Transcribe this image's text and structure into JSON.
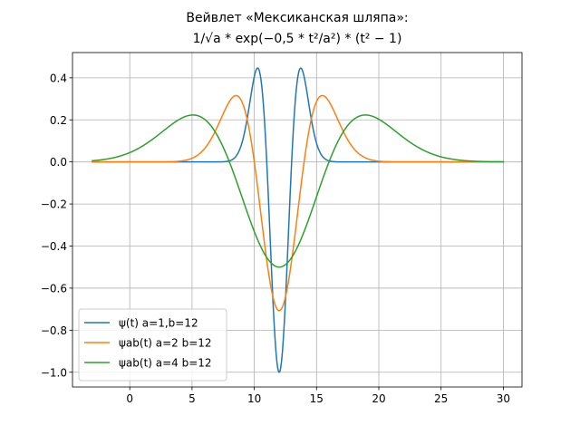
{
  "chart_data": {
    "type": "line",
    "title_line1": "Вейвлет «Мексиканская шляпа»:",
    "title_line2": "1/√a * exp(−0,5 * t²/a²) * (t² − 1)",
    "xlabel": "",
    "ylabel": "",
    "xlim": [
      -4.6,
      31.5
    ],
    "ylim": [
      -1.07,
      0.52
    ],
    "xticks": [
      0,
      5,
      10,
      15,
      20,
      25,
      30
    ],
    "xtick_labels": [
      "0",
      "5",
      "10",
      "15",
      "20",
      "25",
      "30"
    ],
    "yticks": [
      -1.0,
      -0.8,
      -0.6,
      -0.4,
      -0.2,
      0.0,
      0.2,
      0.4
    ],
    "ytick_labels": [
      "−1.0",
      "−0.8",
      "−0.6",
      "−0.4",
      "−0.2",
      "0.0",
      "0.2",
      "0.4"
    ],
    "grid": true,
    "legend_position": "lower-left",
    "x_range": [
      -3,
      30
    ],
    "series": [
      {
        "name": "ψ(t) a=1,b=12",
        "a": 1,
        "b": 12,
        "color": "#1f77b4"
      },
      {
        "name": "ψab(t) a=2 b=12",
        "a": 2,
        "b": 12,
        "color": "#ff7f0e"
      },
      {
        "name": "ψab(t) a=4 b=12",
        "a": 4,
        "b": 12,
        "color": "#2ca02c"
      }
    ]
  }
}
